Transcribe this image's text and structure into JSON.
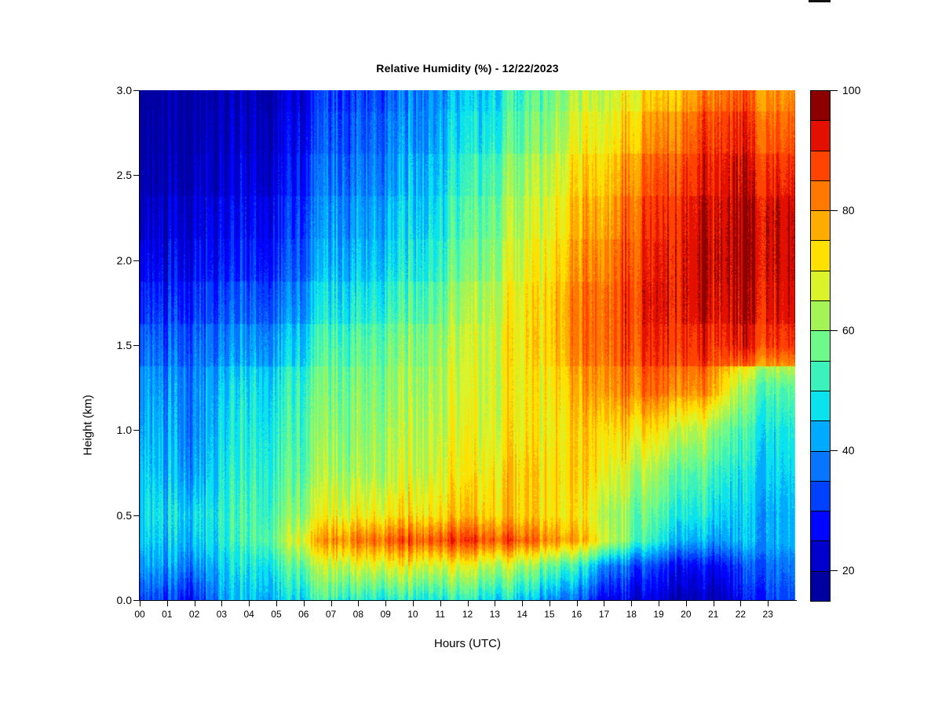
{
  "chart_data": {
    "type": "heatmap",
    "title": "Relative Humidity (%) - 12/22/2023",
    "xlabel": "Hours (UTC)",
    "ylabel": "Height (km)",
    "x_range": [
      0,
      24
    ],
    "y_range": [
      0,
      3
    ],
    "x_tick_labels": [
      "00",
      "01",
      "02",
      "03",
      "04",
      "05",
      "06",
      "07",
      "08",
      "09",
      "10",
      "11",
      "12",
      "13",
      "14",
      "15",
      "16",
      "17",
      "18",
      "19",
      "20",
      "21",
      "22",
      "23"
    ],
    "y_tick_values": [
      0,
      0.5,
      1,
      1.5,
      2,
      2.5,
      3
    ],
    "y_tick_labels": [
      "0.0",
      "0.5",
      "1.0",
      "1.5",
      "2.0",
      "2.5",
      "3.0"
    ],
    "colorbar": {
      "min": 15,
      "max": 100,
      "step": 5,
      "tick_values": [
        20,
        40,
        60,
        80,
        100
      ],
      "tick_labels": [
        "20",
        "40",
        "60",
        "80",
        "100"
      ],
      "colors_low_to_high": [
        "#0000A0",
        "#0000CD",
        "#0005FF",
        "#0040FF",
        "#0875FF",
        "#00ABFF",
        "#0AE2EE",
        "#3CF2BC",
        "#6EFA8A",
        "#A5F457",
        "#DAF32A",
        "#FFE000",
        "#FFAC00",
        "#FF7800",
        "#FF4300",
        "#E31000",
        "#8E0000"
      ]
    },
    "grid": {
      "hours": [
        0,
        1,
        2,
        3,
        4,
        5,
        6,
        7,
        8,
        9,
        10,
        11,
        12,
        13,
        14,
        15,
        16,
        17,
        18,
        19,
        20,
        21,
        22,
        23
      ],
      "heights_km": [
        3.0,
        2.75,
        2.5,
        2.25,
        2.0,
        1.75,
        1.5,
        1.25,
        1.0,
        0.75,
        0.5,
        0.35,
        0.2,
        0.0
      ],
      "rh_values": [
        [
          19,
          18,
          17,
          18,
          20,
          22,
          25,
          29,
          32,
          35,
          38,
          41,
          43,
          47,
          52,
          57,
          62,
          67,
          71,
          75,
          80,
          85,
          87,
          81
        ],
        [
          21,
          19,
          18,
          19,
          21,
          24,
          27,
          31,
          34,
          37,
          40,
          43,
          46,
          50,
          55,
          60,
          66,
          71,
          76,
          81,
          86,
          91,
          92,
          86
        ],
        [
          23,
          21,
          20,
          21,
          23,
          26,
          30,
          34,
          37,
          40,
          43,
          46,
          50,
          55,
          60,
          65,
          71,
          76,
          82,
          87,
          91,
          94,
          95,
          91
        ],
        [
          26,
          24,
          23,
          24,
          26,
          29,
          33,
          37,
          40,
          43,
          46,
          49,
          53,
          58,
          63,
          68,
          74,
          80,
          86,
          90,
          94,
          96,
          97,
          95
        ],
        [
          30,
          27,
          26,
          27,
          29,
          32,
          36,
          40,
          43,
          46,
          49,
          52,
          56,
          61,
          66,
          71,
          77,
          83,
          88,
          92,
          95,
          97,
          97,
          95
        ],
        [
          35,
          32,
          30,
          32,
          34,
          37,
          41,
          45,
          48,
          51,
          54,
          57,
          61,
          65,
          69,
          74,
          80,
          86,
          90,
          93,
          95,
          96,
          96,
          94
        ],
        [
          41,
          37,
          35,
          37,
          40,
          43,
          47,
          51,
          54,
          57,
          59,
          62,
          64,
          67,
          70,
          74,
          80,
          86,
          89,
          91,
          92,
          92,
          93,
          90
        ],
        [
          46,
          42,
          38,
          43,
          47,
          50,
          53,
          55,
          58,
          60,
          62,
          64,
          65,
          67,
          69,
          71,
          75,
          82,
          84,
          85,
          84,
          82,
          64,
          56
        ],
        [
          48,
          44,
          38,
          45,
          49,
          52,
          55,
          57,
          59,
          62,
          64,
          66,
          67,
          68,
          70,
          70,
          72,
          75,
          74,
          72,
          68,
          64,
          55,
          50
        ],
        [
          50,
          46,
          40,
          47,
          51,
          54,
          57,
          60,
          62,
          64,
          66,
          68,
          69,
          71,
          73,
          72,
          72,
          72,
          66,
          62,
          58,
          56,
          50,
          47
        ],
        [
          52,
          49,
          46,
          49,
          53,
          57,
          62,
          66,
          69,
          71,
          72,
          73,
          74,
          74,
          73,
          72,
          70,
          66,
          60,
          55,
          52,
          50,
          46,
          44
        ],
        [
          50,
          47,
          44,
          48,
          53,
          60,
          70,
          77,
          82,
          85,
          86,
          87,
          87,
          86,
          84,
          81,
          76,
          70,
          58,
          50,
          46,
          44,
          45,
          44
        ],
        [
          46,
          43,
          38,
          44,
          48,
          52,
          58,
          62,
          66,
          68,
          68,
          67,
          66,
          64,
          61,
          57,
          50,
          42,
          36,
          32,
          30,
          29,
          34,
          38
        ],
        [
          38,
          34,
          28,
          40,
          44,
          46,
          48,
          50,
          50,
          50,
          50,
          50,
          49,
          47,
          44,
          40,
          34,
          28,
          26,
          24,
          23,
          22,
          28,
          34
        ]
      ]
    },
    "noise": {
      "seed": 7,
      "column_amp": 4.5,
      "meso_amp": 3.5,
      "macro_amp": 2.5,
      "pixel_amp": 1.5
    }
  }
}
